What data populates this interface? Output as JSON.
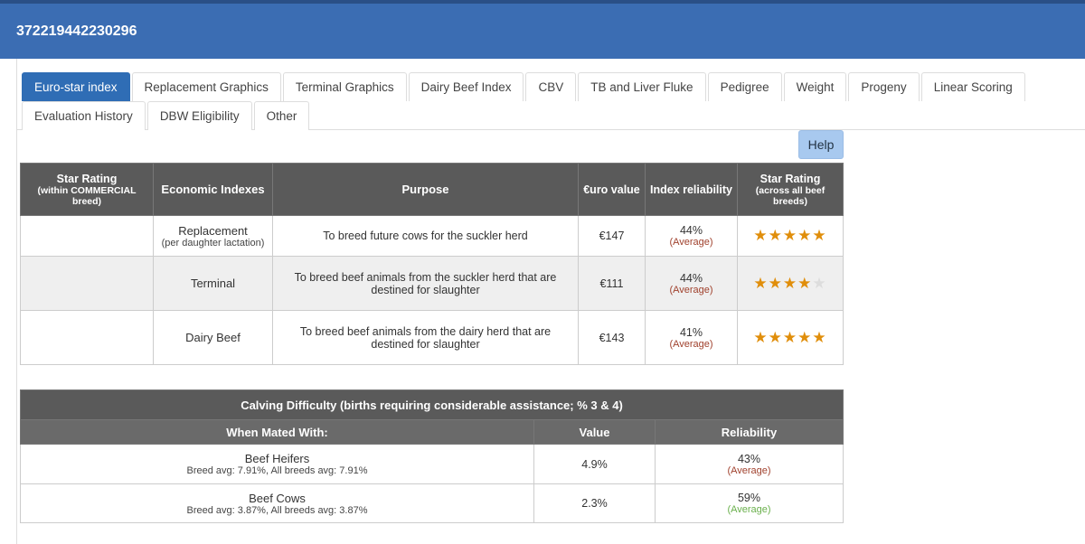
{
  "header": {
    "title": "372219442230296"
  },
  "tabs": [
    [
      "Euro-star index",
      "Replacement Graphics",
      "Terminal Graphics",
      "Dairy Beef Index",
      "CBV",
      "TB and Liver Fluke",
      "Pedigree",
      "Weight",
      "Progeny",
      "Linear Scoring"
    ],
    [
      "Evaluation History",
      "DBW Eligibility",
      "Other"
    ]
  ],
  "help": "Help",
  "index_table": {
    "headers": [
      {
        "title": "Star Rating",
        "sub": "(within COMMERCIAL breed)"
      },
      {
        "title": "Economic Indexes"
      },
      {
        "title": "Purpose"
      },
      {
        "title": "€uro value"
      },
      {
        "title": "Index reliability"
      },
      {
        "title": "Star Rating",
        "sub": "(across all beef breeds)"
      }
    ],
    "rows": [
      {
        "index": "Replacement",
        "index_note": "(per daughter lactation)",
        "purpose": "To breed future cows for the suckler herd",
        "euro": "€147",
        "reliability": "44%",
        "reliability_label": "(Average)",
        "stars": 5
      },
      {
        "index": "Terminal",
        "purpose": "To breed beef animals from the suckler herd that are destined for slaughter",
        "euro": "€111",
        "reliability": "44%",
        "reliability_label": "(Average)",
        "stars": 4
      },
      {
        "index": "Dairy Beef",
        "purpose": "To breed beef animals from the dairy herd that are destined for slaughter",
        "euro": "€143",
        "reliability": "41%",
        "reliability_label": "(Average)",
        "stars": 5
      }
    ]
  },
  "calving_table": {
    "title": "Calving Difficulty (births requiring considerable assistance; % 3 & 4)",
    "headers": [
      "When Mated With:",
      "Value",
      "Reliability"
    ],
    "rows": [
      {
        "name": "Beef Heifers",
        "note": "Breed avg: 7.91%, All breeds avg: 7.91%",
        "value": "4.9%",
        "reliability": "43%",
        "reliability_label": "(Average)",
        "reliability_color": "#a0412d"
      },
      {
        "name": "Beef Cows",
        "note": "Breed avg: 3.87%, All breeds avg: 3.87%",
        "value": "2.3%",
        "reliability": "59%",
        "reliability_label": "(Average)",
        "reliability_color": "#6ab04c"
      }
    ]
  }
}
